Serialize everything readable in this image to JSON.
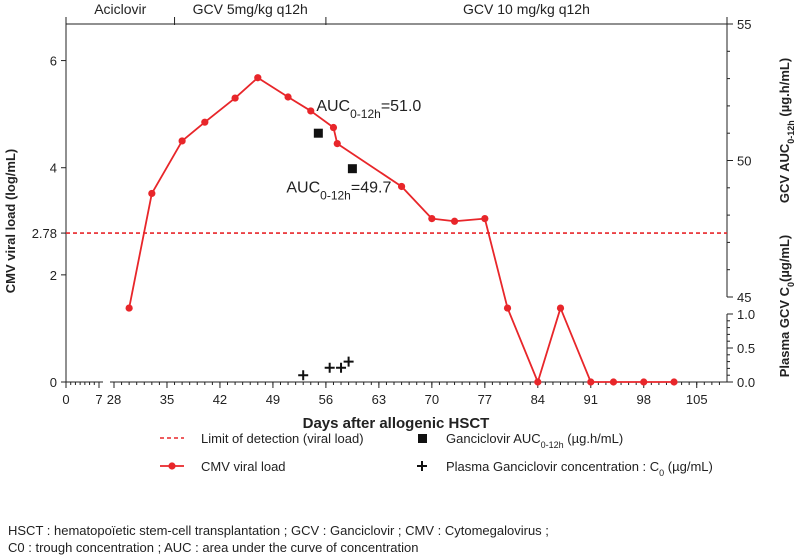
{
  "chart_data": {
    "type": "line",
    "xlabel": "Days after allogenic HSCT",
    "ylabel_left": "CMV viral load (log/mL)",
    "ylabel_right_top": "GCV AUC0-12h (µg.h/mL)",
    "ylabel_right_bottom": "Plasma GCV C0(µg/mL)",
    "x_ticks": [
      0,
      7,
      28,
      35,
      42,
      49,
      56,
      63,
      70,
      77,
      84,
      91,
      98,
      105
    ],
    "x_tick_labels": [
      "0",
      "7",
      "28",
      "35",
      "42",
      "49",
      "56",
      "63",
      "70",
      "77",
      "84",
      "91",
      "98",
      "105"
    ],
    "x_axis_break": [
      7,
      28
    ],
    "xlim": [
      0,
      105
    ],
    "left_ticks": [
      0,
      2,
      4,
      6
    ],
    "left_tick_labels": [
      "0",
      "2",
      "4",
      "6"
    ],
    "left_ylim": [
      0,
      7
    ],
    "lod_value": 2.78,
    "lod_label": "2.78",
    "auc_ticks": [
      45,
      50,
      55
    ],
    "auc_tick_labels": [
      "45",
      "50",
      "55"
    ],
    "auc_ylim": [
      45,
      55
    ],
    "c0_ticks": [
      0,
      0.5,
      1.0
    ],
    "c0_tick_labels": [
      "0.0",
      "0.5",
      "1.0"
    ],
    "c0_ylim": [
      0,
      1.0
    ],
    "treatment_periods": [
      {
        "label": "Aciclovir",
        "start": 0,
        "end": 36
      },
      {
        "label": "GCV 5mg/kg q12h",
        "start": 36,
        "end": 56
      },
      {
        "label": "GCV 10 mg/kg q12h",
        "start": 56,
        "end": 109
      }
    ],
    "series": [
      {
        "name": "CMV viral load",
        "axis": "left",
        "x": [
          30,
          33,
          37,
          40,
          44,
          47,
          51,
          54,
          57,
          57.5,
          66,
          70,
          73,
          77,
          80,
          84,
          87,
          91,
          94,
          98,
          102
        ],
        "y": [
          1.38,
          3.52,
          4.5,
          4.85,
          5.3,
          5.68,
          5.32,
          5.06,
          4.75,
          4.45,
          3.65,
          3.05,
          3.0,
          3.05,
          1.38,
          0.0,
          1.38,
          0.0,
          0.0,
          0.0,
          0.0
        ]
      },
      {
        "name": "Ganciclovir AUC0-12h",
        "axis": "auc",
        "x": [
          55,
          59.5
        ],
        "y": [
          51.0,
          49.7
        ]
      },
      {
        "name": "Plasma Ganciclovir concentration C0",
        "axis": "c0",
        "x": [
          53,
          56.5,
          58,
          59
        ],
        "y": [
          0.1,
          0.21,
          0.21,
          0.3
        ]
      }
    ],
    "annotations": [
      {
        "main": "AUC",
        "sub": "0-12h",
        "value": "=51.0",
        "x": 55,
        "y": 51.0
      },
      {
        "main": "AUC",
        "sub": "0-12h",
        "value": "=49.7",
        "x": 59.5,
        "y": 49.7
      }
    ],
    "legend": {
      "lod_label": "Limit of detection (viral load)",
      "cmv_label": "CMV viral load",
      "auc_label": "Ganciclovir AUC0-12h (µg.h/mL)",
      "c0_label": "Plasma Ganciclovir concentration : C0 (µg/mL)"
    },
    "colors": {
      "line": "#e8262a",
      "lod": "#e8262a",
      "marker": "#111111",
      "axis": "#222222"
    }
  },
  "footnote": {
    "line1": "HSCT : hematopoïetic stem-cell transplantation ; GCV : Ganciclovir ; CMV : Cytomegalovirus ;",
    "line2": "C0 : trough concentration ; AUC : area under the curve of concentration"
  }
}
